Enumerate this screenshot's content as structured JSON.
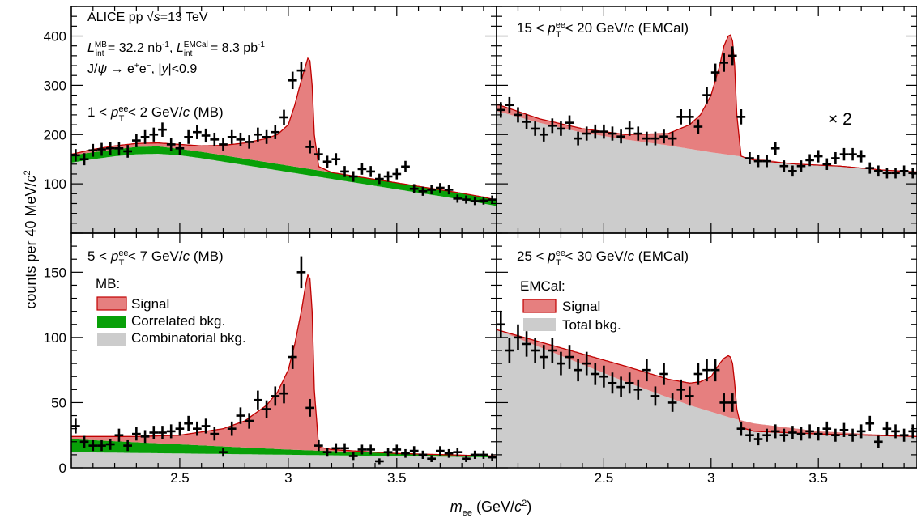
{
  "figure": {
    "ylabel": "counts per 40 MeV/c²",
    "xlabel": "m_ee (GeV/c²)",
    "header_lines": [
      "ALICE pp √s=13 TeV",
      "L_int^MB = 32.2 nb⁻¹, L_int^EMCal = 8.3 pb⁻¹",
      "J/ψ → e⁺e⁻, |y|<0.9"
    ],
    "scale_note": "× 2",
    "legend_mb": {
      "title": "MB:",
      "signal": "Signal",
      "correlated": "Correlated bkg.",
      "combinatorial": "Combinatorial bkg."
    },
    "legend_emcal": {
      "title": "EMCal:",
      "signal": "Signal",
      "total": "Total bkg."
    }
  },
  "colors": {
    "signal": "#e67f7f",
    "signal_edge": "#c00000",
    "correlated": "#08a008",
    "background": "#cccccc",
    "points": "#000000"
  },
  "chart_data": [
    {
      "type": "area",
      "panel": "top-left",
      "title": "1 < p_T^ee < 2 GeV/c (MB)",
      "xlim": [
        2.0,
        3.96
      ],
      "ylim": [
        0,
        460
      ],
      "yticks": [
        100,
        200,
        300,
        400
      ],
      "xticks": [
        2.5,
        3.0,
        3.5
      ],
      "points": {
        "x": [
          2.02,
          2.06,
          2.1,
          2.14,
          2.18,
          2.22,
          2.26,
          2.3,
          2.34,
          2.38,
          2.42,
          2.46,
          2.5,
          2.54,
          2.58,
          2.62,
          2.66,
          2.7,
          2.74,
          2.78,
          2.82,
          2.86,
          2.9,
          2.94,
          2.98,
          3.02,
          3.06,
          3.1,
          3.14,
          3.18,
          3.22,
          3.26,
          3.3,
          3.34,
          3.38,
          3.42,
          3.46,
          3.5,
          3.54,
          3.58,
          3.62,
          3.66,
          3.7,
          3.74,
          3.78,
          3.82,
          3.86,
          3.9,
          3.94
        ],
        "y": [
          158,
          150,
          168,
          170,
          172,
          172,
          166,
          188,
          195,
          200,
          210,
          180,
          172,
          195,
          205,
          198,
          190,
          180,
          195,
          190,
          185,
          200,
          195,
          205,
          235,
          310,
          330,
          175,
          160,
          145,
          150,
          125,
          115,
          130,
          125,
          110,
          115,
          120,
          135,
          90,
          85,
          88,
          92,
          88,
          70,
          68,
          65,
          66,
          68
        ]
      },
      "combinatorial": {
        "x": [
          2.0,
          2.1,
          2.2,
          2.3,
          2.4,
          2.5,
          2.6,
          2.7,
          2.8,
          2.9,
          3.0,
          3.1,
          3.2,
          3.3,
          3.4,
          3.5,
          3.6,
          3.7,
          3.8,
          3.9,
          3.96
        ],
        "y": [
          143,
          150,
          156,
          160,
          161,
          158,
          152,
          145,
          138,
          131,
          124,
          117,
          110,
          103,
          96,
          89,
          82,
          75,
          68,
          60,
          55
        ]
      },
      "correlated": {
        "x": [
          2.0,
          2.1,
          2.2,
          2.3,
          2.4,
          2.5,
          2.6,
          2.7,
          2.8,
          2.9,
          3.0,
          3.1,
          3.2,
          3.3,
          3.4,
          3.5,
          3.6,
          3.7,
          3.8,
          3.9,
          3.96
        ],
        "y": [
          158,
          164,
          170,
          175,
          176,
          171,
          165,
          158,
          151,
          144,
          137,
          130,
          123,
          116,
          109,
          102,
          95,
          88,
          81,
          73,
          67
        ]
      },
      "total": {
        "x": [
          2.0,
          2.1,
          2.2,
          2.3,
          2.4,
          2.5,
          2.6,
          2.7,
          2.8,
          2.9,
          2.95,
          3.0,
          3.03,
          3.06,
          3.08,
          3.09,
          3.1,
          3.11,
          3.12,
          3.14,
          3.2,
          3.3,
          3.4,
          3.5,
          3.6,
          3.7,
          3.8,
          3.9,
          3.96
        ],
        "y": [
          160,
          170,
          177,
          182,
          183,
          180,
          177,
          178,
          183,
          192,
          200,
          220,
          260,
          310,
          340,
          355,
          350,
          300,
          200,
          135,
          123,
          116,
          109,
          102,
          95,
          88,
          81,
          73,
          67
        ]
      }
    },
    {
      "type": "area",
      "panel": "top-right",
      "title": "15 < p_T^ee < 20 GeV/c (EMCal)",
      "xlim": [
        2.0,
        3.96
      ],
      "ylim": [
        0,
        230
      ],
      "scale": 2,
      "points": {
        "x": [
          2.02,
          2.06,
          2.1,
          2.14,
          2.18,
          2.22,
          2.26,
          2.3,
          2.34,
          2.38,
          2.42,
          2.46,
          2.5,
          2.54,
          2.58,
          2.62,
          2.66,
          2.7,
          2.74,
          2.78,
          2.82,
          2.86,
          2.9,
          2.94,
          2.98,
          3.02,
          3.06,
          3.1,
          3.14,
          3.18,
          3.22,
          3.26,
          3.3,
          3.34,
          3.38,
          3.42,
          3.46,
          3.5,
          3.54,
          3.58,
          3.62,
          3.66,
          3.7,
          3.74,
          3.78,
          3.82,
          3.86,
          3.9,
          3.94
        ],
        "y": [
          125,
          130,
          120,
          113,
          106,
          100,
          109,
          106,
          112,
          96,
          101,
          103,
          103,
          101,
          98,
          106,
          101,
          96,
          96,
          98,
          96,
          118,
          118,
          108,
          140,
          163,
          173,
          180,
          118,
          76,
          73,
          73,
          86,
          68,
          63,
          68,
          74,
          78,
          70,
          76,
          80,
          80,
          78,
          66,
          63,
          61,
          61,
          63,
          61
        ]
      },
      "total": {
        "x": [
          2.0,
          2.2,
          2.4,
          2.6,
          2.8,
          2.9,
          2.95,
          3.0,
          3.04,
          3.06,
          3.08,
          3.09,
          3.1,
          3.11,
          3.12,
          3.14,
          3.2,
          3.4,
          3.6,
          3.8,
          3.96
        ],
        "y": [
          131,
          116,
          106,
          100,
          101,
          110,
          120,
          140,
          170,
          190,
          200,
          201,
          195,
          170,
          120,
          78,
          74,
          70,
          68,
          64,
          62
        ]
      },
      "background": {
        "x": [
          2.0,
          2.2,
          2.4,
          2.6,
          2.8,
          3.0,
          3.2,
          3.4,
          3.6,
          3.8,
          3.96
        ],
        "y": [
          124,
          112,
          102,
          95,
          89,
          82,
          76,
          70,
          68,
          64,
          62
        ]
      }
    },
    {
      "type": "area",
      "panel": "bottom-left",
      "title": "5 < p_T^ee < 7 GeV/c (MB)",
      "xlim": [
        2.0,
        3.96
      ],
      "ylim": [
        0,
        180
      ],
      "yticks": [
        0,
        50,
        100,
        150
      ],
      "xticks": [
        2.5,
        3.0,
        3.5
      ],
      "points": {
        "x": [
          2.02,
          2.06,
          2.1,
          2.14,
          2.18,
          2.22,
          2.26,
          2.3,
          2.34,
          2.38,
          2.42,
          2.46,
          2.5,
          2.54,
          2.58,
          2.62,
          2.66,
          2.7,
          2.74,
          2.78,
          2.82,
          2.86,
          2.9,
          2.94,
          2.98,
          3.02,
          3.06,
          3.1,
          3.14,
          3.18,
          3.22,
          3.26,
          3.3,
          3.34,
          3.38,
          3.42,
          3.46,
          3.5,
          3.54,
          3.58,
          3.62,
          3.66,
          3.7,
          3.74,
          3.78,
          3.82,
          3.86,
          3.9,
          3.94
        ],
        "y": [
          32,
          20,
          17,
          17,
          18,
          25,
          17,
          26,
          24,
          27,
          27,
          28,
          30,
          34,
          30,
          32,
          26,
          12,
          30,
          40,
          36,
          52,
          45,
          55,
          57,
          85,
          150,
          46,
          17,
          12,
          15,
          15,
          9,
          14,
          14,
          5,
          12,
          14,
          11,
          13,
          10,
          7,
          13,
          11,
          12,
          7,
          10,
          10,
          8
        ]
      },
      "combinatorial": {
        "x": [
          2.0,
          2.5,
          3.0,
          3.5,
          3.96
        ],
        "y": [
          12,
          11,
          10,
          9,
          8
        ]
      },
      "correlated": {
        "x": [
          2.0,
          2.5,
          3.0,
          3.5,
          3.96
        ],
        "y": [
          22,
          18,
          14,
          11,
          9
        ]
      },
      "total": {
        "x": [
          2.0,
          2.3,
          2.5,
          2.7,
          2.8,
          2.9,
          2.95,
          3.0,
          3.03,
          3.06,
          3.08,
          3.09,
          3.1,
          3.11,
          3.12,
          3.14,
          3.2,
          3.5,
          3.96
        ],
        "y": [
          24,
          24,
          25,
          30,
          36,
          48,
          58,
          75,
          95,
          120,
          140,
          148,
          145,
          120,
          60,
          16,
          14,
          11,
          9
        ]
      }
    },
    {
      "type": "area",
      "panel": "bottom-right",
      "title": "25 < p_T^ee < 30 GeV/c (EMCal)",
      "xlim": [
        2.0,
        3.96
      ],
      "ylim": [
        0,
        180
      ],
      "points": {
        "x": [
          2.02,
          2.06,
          2.1,
          2.14,
          2.18,
          2.22,
          2.26,
          2.3,
          2.34,
          2.38,
          2.42,
          2.46,
          2.5,
          2.54,
          2.58,
          2.62,
          2.66,
          2.7,
          2.74,
          2.78,
          2.82,
          2.86,
          2.9,
          2.94,
          2.98,
          3.02,
          3.06,
          3.1,
          3.14,
          3.18,
          3.22,
          3.26,
          3.3,
          3.34,
          3.38,
          3.42,
          3.46,
          3.5,
          3.54,
          3.58,
          3.62,
          3.66,
          3.7,
          3.74,
          3.78,
          3.82,
          3.86,
          3.9,
          3.94
        ],
        "y": [
          110,
          90,
          100,
          95,
          90,
          85,
          90,
          80,
          85,
          75,
          80,
          72,
          70,
          65,
          62,
          65,
          60,
          75,
          55,
          72,
          50,
          60,
          55,
          72,
          75,
          75,
          50,
          50,
          30,
          25,
          22,
          25,
          28,
          25,
          27,
          26,
          28,
          26,
          30,
          25,
          29,
          25,
          28,
          34,
          20,
          30,
          28,
          25,
          28
        ]
      },
      "total": {
        "x": [
          2.0,
          2.3,
          2.6,
          2.8,
          2.9,
          2.95,
          3.0,
          3.04,
          3.06,
          3.08,
          3.09,
          3.1,
          3.11,
          3.12,
          3.14,
          3.2,
          3.5,
          3.96
        ],
        "y": [
          106,
          92,
          78,
          68,
          65,
          66,
          70,
          80,
          84,
          86,
          85,
          80,
          65,
          45,
          31,
          28,
          26,
          24
        ]
      },
      "background": {
        "x": [
          2.0,
          2.3,
          2.6,
          2.9,
          3.1,
          3.2,
          3.5,
          3.96
        ],
        "y": [
          106,
          86,
          66,
          48,
          38,
          34,
          28,
          24
        ]
      }
    }
  ]
}
